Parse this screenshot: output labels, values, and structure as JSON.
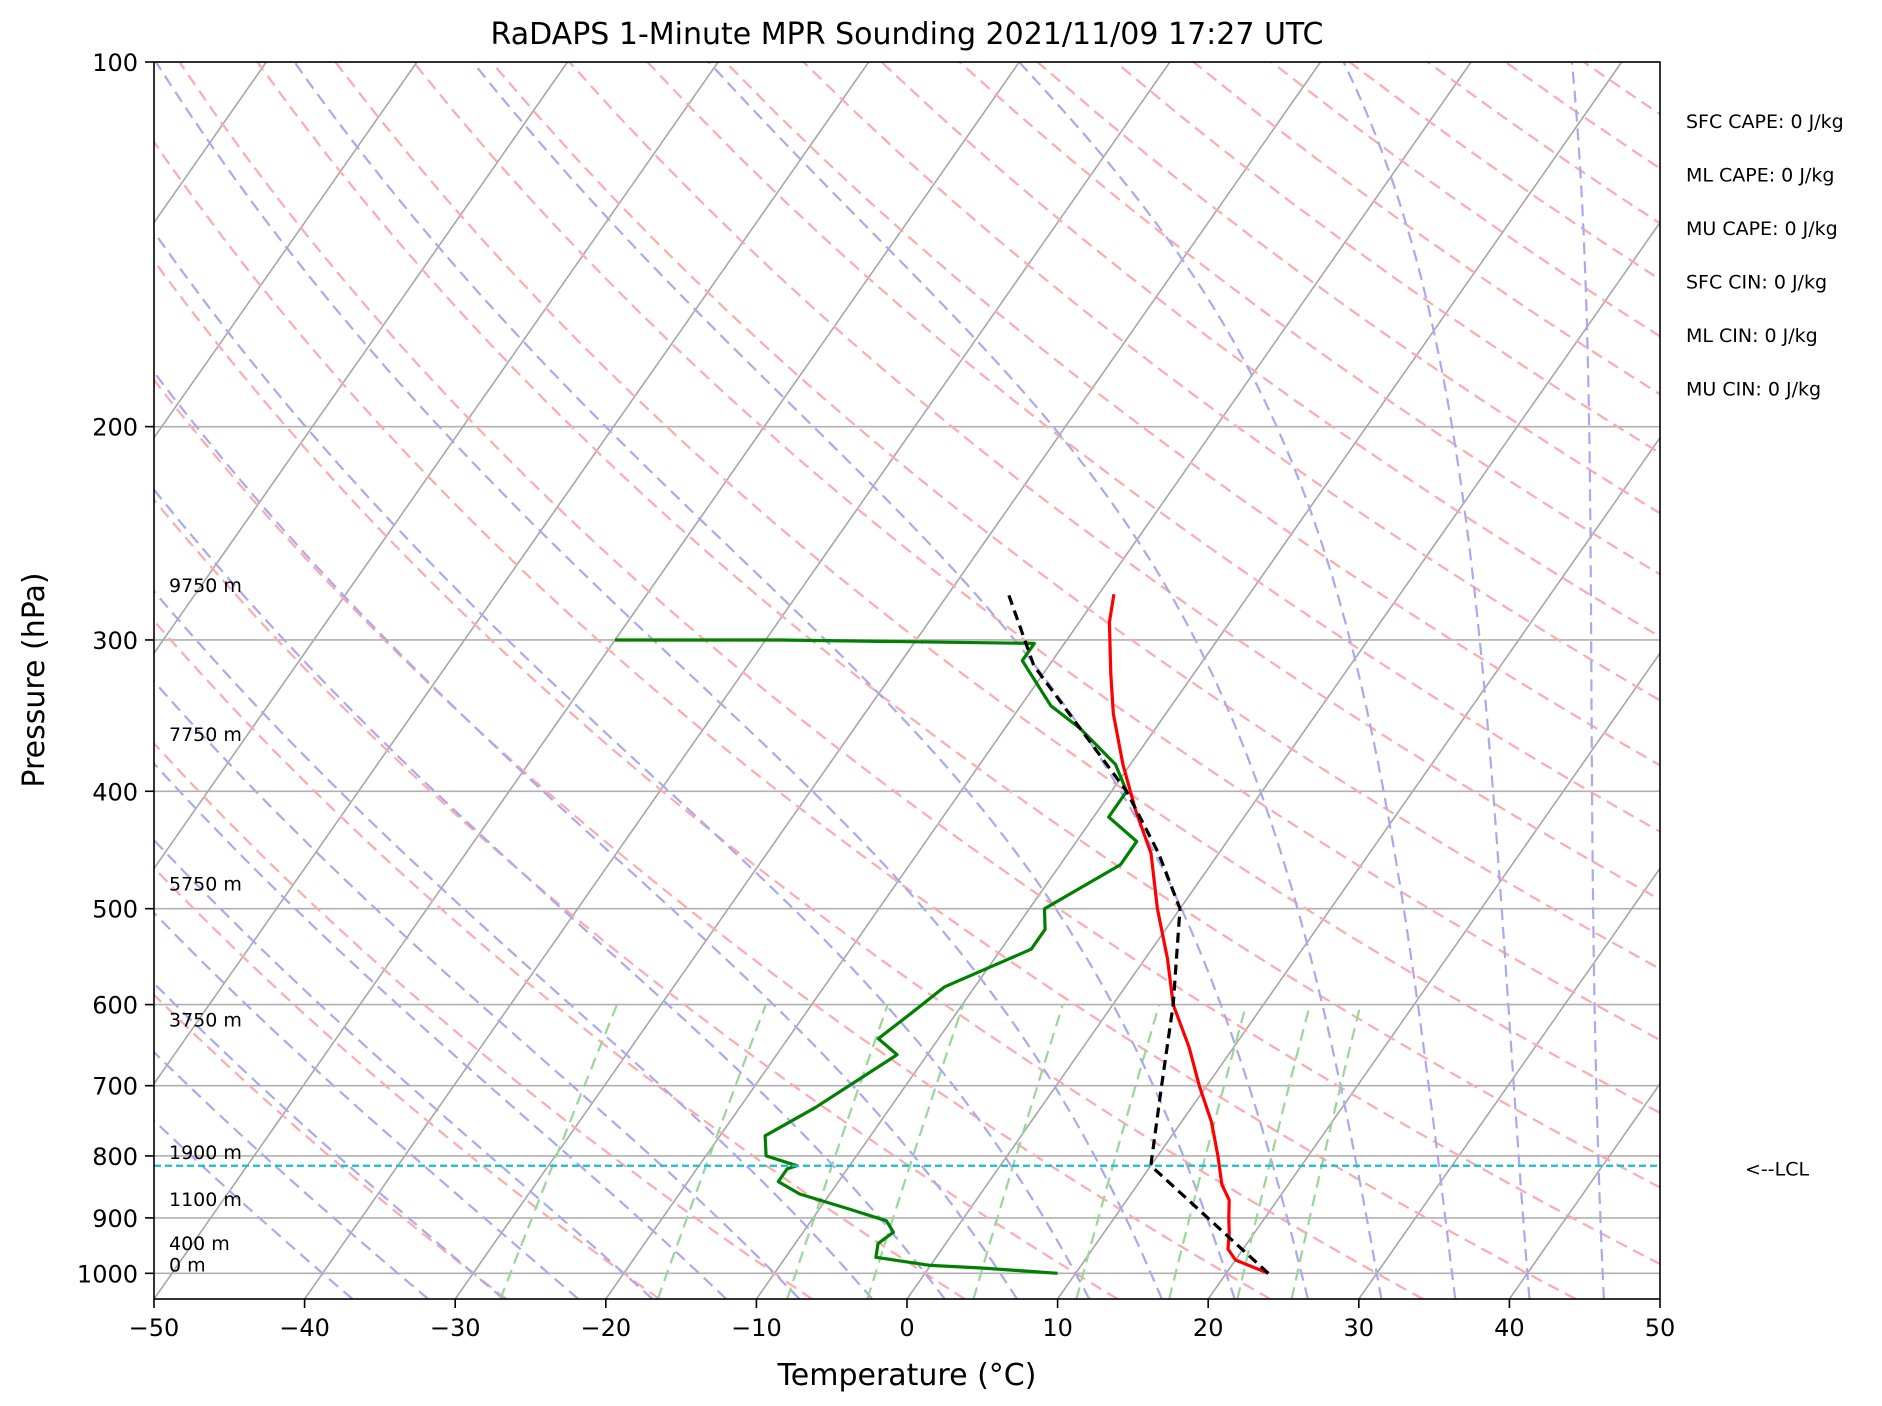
{
  "chart_data": {
    "type": "skew-t log-p sounding",
    "title": "RaDAPS 1-Minute MPR Sounding 2021/11/09 17:27 UTC",
    "xlabel": "Temperature (°C)",
    "ylabel": "Pressure (hPa)",
    "xlim": [
      -50,
      50
    ],
    "ylim": [
      1050,
      100
    ],
    "yscale": "log",
    "x_ticks": [
      "−50",
      "−40",
      "−30",
      "−20",
      "−10",
      "0",
      "10",
      "20",
      "30",
      "40",
      "50"
    ],
    "y_ticks": [
      "100",
      "200",
      "300",
      "400",
      "500",
      "600",
      "700",
      "800",
      "900",
      "1000"
    ],
    "grid": true,
    "colors": {
      "temperature": "#ff0000",
      "dewpoint": "#008000",
      "parcel": "#000000",
      "lcl": "#17becf",
      "isotherms": "#a6a6a6",
      "dry_adiabats": "#ffaaaa",
      "moist_adiabats": "#a9a9f0",
      "mixing_ratio": "#99d699"
    },
    "series": [
      {
        "key": "temperature",
        "points": [
          [
            22.8,
            1000
          ],
          [
            20,
            975
          ],
          [
            19,
            955
          ],
          [
            18.3,
            925
          ],
          [
            17.6,
            900
          ],
          [
            16.8,
            870
          ],
          [
            15.6,
            845
          ],
          [
            14,
            800
          ],
          [
            12,
            750
          ],
          [
            9.5,
            700
          ],
          [
            7,
            650
          ],
          [
            4,
            600
          ],
          [
            1.5,
            550
          ],
          [
            -1.5,
            500
          ],
          [
            -4.5,
            450
          ],
          [
            -7.5,
            415
          ],
          [
            -10.5,
            380
          ],
          [
            -13.5,
            345
          ],
          [
            -15.5,
            320
          ],
          [
            -18,
            290
          ],
          [
            -19,
            275
          ]
        ]
      },
      {
        "key": "dewpoint",
        "points": [
          [
            8.8,
            1000
          ],
          [
            3.5,
            990
          ],
          [
            0,
            985
          ],
          [
            -4,
            970
          ],
          [
            -4.5,
            945
          ],
          [
            -4,
            925
          ],
          [
            -5,
            905
          ],
          [
            -8,
            885
          ],
          [
            -12,
            860
          ],
          [
            -14,
            840
          ],
          [
            -14,
            820
          ],
          [
            -13.5,
            815
          ],
          [
            -16,
            800
          ],
          [
            -17,
            770
          ],
          [
            -15,
            730
          ],
          [
            -12,
            660
          ],
          [
            -14,
            640
          ],
          [
            -13,
            610
          ],
          [
            -12,
            580
          ],
          [
            -8,
            540
          ],
          [
            -8,
            520
          ],
          [
            -9,
            500
          ],
          [
            -6,
            460
          ],
          [
            -6,
            440
          ],
          [
            -9,
            420
          ],
          [
            -9,
            400
          ],
          [
            -11,
            380
          ],
          [
            -15,
            355
          ],
          [
            -18,
            340
          ],
          [
            -22,
            312
          ],
          [
            -22,
            302
          ],
          [
            -39,
            300
          ],
          [
            -50,
            300
          ]
        ]
      },
      {
        "key": "parcel",
        "points": [
          [
            22.8,
            1000
          ],
          [
            10,
            815
          ],
          [
            7,
            700
          ],
          [
            4,
            600
          ],
          [
            0,
            500
          ],
          [
            -4,
            450
          ],
          [
            -9,
            400
          ],
          [
            -15,
            355
          ],
          [
            -21,
            315
          ],
          [
            -26,
            275
          ]
        ]
      }
    ],
    "lcl_pressure": 815,
    "lcl_label": "<--LCL",
    "height_labels": [
      {
        "label": "9750 m",
        "p": 275
      },
      {
        "label": "7750 m",
        "p": 365
      },
      {
        "label": "5750 m",
        "p": 485
      },
      {
        "label": "3750 m",
        "p": 628
      },
      {
        "label": "1900 m",
        "p": 808
      },
      {
        "label": "1100 m",
        "p": 883
      },
      {
        "label": "400 m",
        "p": 960
      },
      {
        "label": "0 m",
        "p": 1000
      }
    ],
    "indices": [
      "SFC CAPE: 0 J/kg",
      "ML CAPE: 0 J/kg",
      "MU CAPE: 0 J/kg",
      "SFC CIN: 0 J/kg",
      "ML CIN: 0 J/kg",
      "MU CIN: 0 J/kg"
    ]
  }
}
